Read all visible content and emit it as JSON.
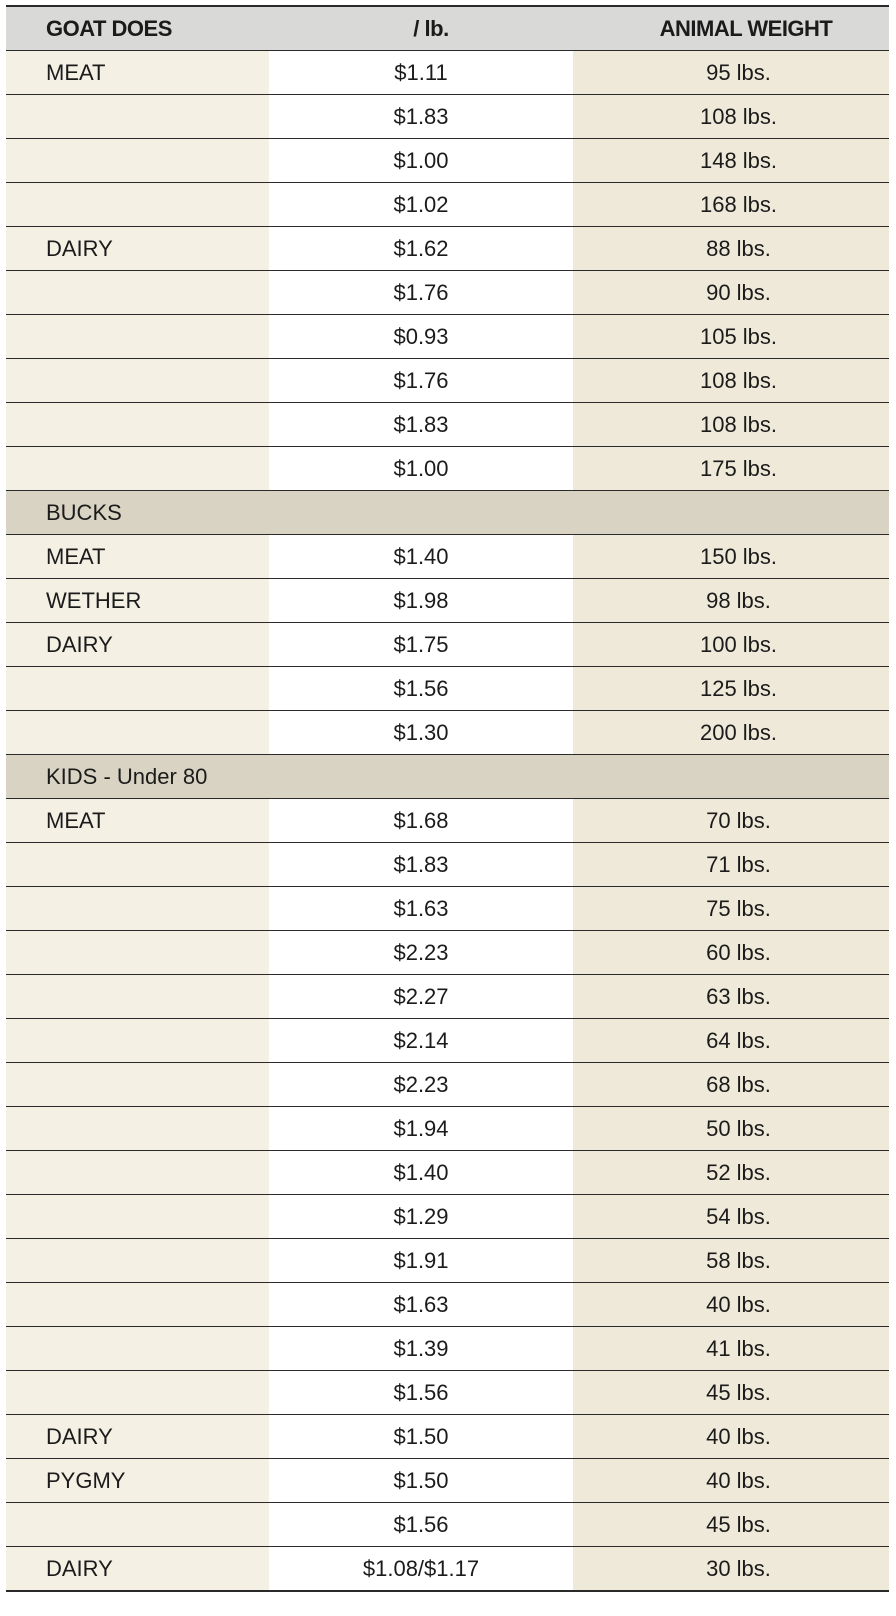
{
  "headers": {
    "category": "GOAT DOES",
    "price": "/ lb.",
    "weight": "ANIMAL WEIGHT"
  },
  "rows": [
    {
      "type": "row",
      "label": "MEAT",
      "price": "$1.11",
      "weight": "95 lbs."
    },
    {
      "type": "row",
      "label": "",
      "price": "$1.83",
      "weight": "108 lbs."
    },
    {
      "type": "row",
      "label": "",
      "price": "$1.00",
      "weight": "148 lbs."
    },
    {
      "type": "row",
      "label": "",
      "price": "$1.02",
      "weight": "168 lbs."
    },
    {
      "type": "row",
      "label": "DAIRY",
      "price": "$1.62",
      "weight": "88 lbs."
    },
    {
      "type": "row",
      "label": "",
      "price": "$1.76",
      "weight": "90 lbs."
    },
    {
      "type": "row",
      "label": "",
      "price": "$0.93",
      "weight": "105 lbs."
    },
    {
      "type": "row",
      "label": "",
      "price": "$1.76",
      "weight": "108 lbs."
    },
    {
      "type": "row",
      "label": "",
      "price": "$1.83",
      "weight": "108 lbs."
    },
    {
      "type": "row",
      "label": "",
      "price": "$1.00",
      "weight": "175 lbs."
    },
    {
      "type": "section",
      "label": "BUCKS"
    },
    {
      "type": "row",
      "label": "MEAT",
      "price": "$1.40",
      "weight": "150 lbs."
    },
    {
      "type": "row",
      "label": "WETHER",
      "price": "$1.98",
      "weight": "98 lbs."
    },
    {
      "type": "row",
      "label": "DAIRY",
      "price": "$1.75",
      "weight": "100 lbs."
    },
    {
      "type": "row",
      "label": "",
      "price": "$1.56",
      "weight": "125 lbs."
    },
    {
      "type": "row",
      "label": "",
      "price": "$1.30",
      "weight": "200 lbs."
    },
    {
      "type": "section",
      "label": "KIDS - Under 80"
    },
    {
      "type": "row",
      "label": "MEAT",
      "price": "$1.68",
      "weight": "70 lbs."
    },
    {
      "type": "row",
      "label": "",
      "price": "$1.83",
      "weight": "71 lbs."
    },
    {
      "type": "row",
      "label": "",
      "price": "$1.63",
      "weight": "75 lbs."
    },
    {
      "type": "row",
      "label": "",
      "price": "$2.23",
      "weight": "60 lbs."
    },
    {
      "type": "row",
      "label": "",
      "price": "$2.27",
      "weight": "63 lbs."
    },
    {
      "type": "row",
      "label": "",
      "price": "$2.14",
      "weight": "64 lbs."
    },
    {
      "type": "row",
      "label": "",
      "price": "$2.23",
      "weight": "68 lbs."
    },
    {
      "type": "row",
      "label": "",
      "price": "$1.94",
      "weight": "50 lbs."
    },
    {
      "type": "row",
      "label": "",
      "price": "$1.40",
      "weight": "52 lbs."
    },
    {
      "type": "row",
      "label": "",
      "price": "$1.29",
      "weight": "54 lbs."
    },
    {
      "type": "row",
      "label": "",
      "price": "$1.91",
      "weight": "58 lbs."
    },
    {
      "type": "row",
      "label": "",
      "price": "$1.63",
      "weight": "40 lbs."
    },
    {
      "type": "row",
      "label": "",
      "price": "$1.39",
      "weight": "41 lbs."
    },
    {
      "type": "row",
      "label": "",
      "price": "$1.56",
      "weight": "45 lbs."
    },
    {
      "type": "row",
      "label": "DAIRY",
      "price": "$1.50",
      "weight": "40 lbs."
    },
    {
      "type": "row",
      "label": "PYGMY",
      "price": "$1.50",
      "weight": "40 lbs."
    },
    {
      "type": "row",
      "label": "",
      "price": "$1.56",
      "weight": "45 lbs."
    },
    {
      "type": "row",
      "label": "DAIRY",
      "price": "$1.08/$1.17",
      "weight": "30 lbs."
    }
  ]
}
